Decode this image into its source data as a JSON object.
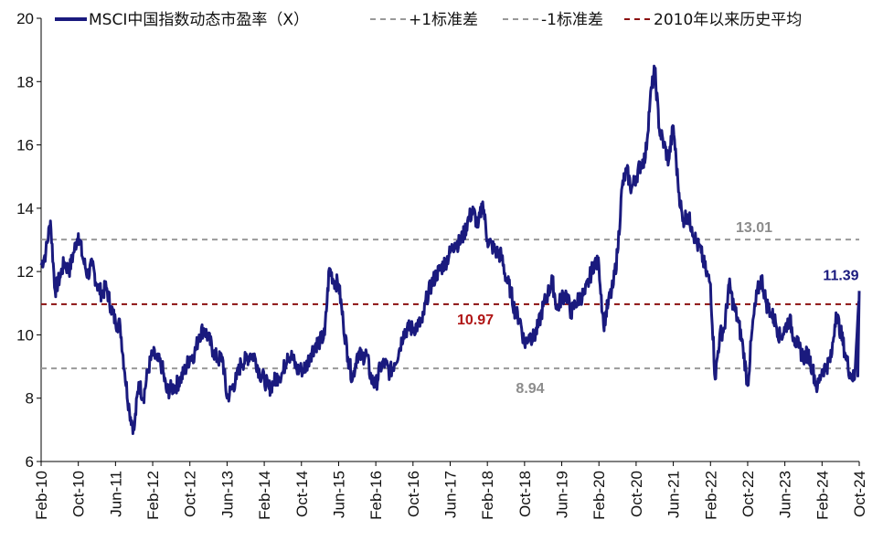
{
  "chart_data": {
    "type": "line",
    "title": "",
    "xlabel": "",
    "ylabel": "",
    "ylim": [
      6,
      20
    ],
    "y_ticks": [
      6,
      8,
      10,
      12,
      14,
      16,
      18,
      20
    ],
    "x_tick_labels": [
      "Feb-10",
      "Oct-10",
      "Jun-11",
      "Feb-12",
      "Oct-12",
      "Jun-13",
      "Feb-14",
      "Oct-14",
      "Jun-15",
      "Feb-16",
      "Oct-16",
      "Jun-17",
      "Feb-18",
      "Oct-18",
      "Jun-19",
      "Feb-20",
      "Oct-20",
      "Jun-21",
      "Feb-22",
      "Oct-22",
      "Jun-23",
      "Feb-24",
      "Oct-24"
    ],
    "legend_position": "top",
    "grid": false,
    "series": [
      {
        "name": "MSCI中国指数动态市盈率（X）",
        "color": "#1a1a7e",
        "points": [
          [
            "2010-02",
            12.2
          ],
          [
            "2010-03",
            12.6
          ],
          [
            "2010-04",
            13.6
          ],
          [
            "2010-05",
            11.4
          ],
          [
            "2010-06",
            11.8
          ],
          [
            "2010-07",
            12.3
          ],
          [
            "2010-08",
            12.0
          ],
          [
            "2010-09",
            12.6
          ],
          [
            "2010-10",
            13.2
          ],
          [
            "2010-11",
            12.4
          ],
          [
            "2010-12",
            11.9
          ],
          [
            "2011-01",
            12.2
          ],
          [
            "2011-02",
            11.6
          ],
          [
            "2011-03",
            11.3
          ],
          [
            "2011-04",
            11.5
          ],
          [
            "2011-05",
            10.9
          ],
          [
            "2011-06",
            10.4
          ],
          [
            "2011-07",
            10.3
          ],
          [
            "2011-08",
            8.8
          ],
          [
            "2011-09",
            7.6
          ],
          [
            "2011-10",
            7.0
          ],
          [
            "2011-11",
            8.5
          ],
          [
            "2011-12",
            8.0
          ],
          [
            "2012-01",
            8.9
          ],
          [
            "2012-02",
            9.4
          ],
          [
            "2012-03",
            9.2
          ],
          [
            "2012-04",
            9.0
          ],
          [
            "2012-05",
            8.2
          ],
          [
            "2012-06",
            8.3
          ],
          [
            "2012-07",
            8.4
          ],
          [
            "2012-08",
            8.6
          ],
          [
            "2012-09",
            8.9
          ],
          [
            "2012-10",
            9.3
          ],
          [
            "2012-11",
            9.4
          ],
          [
            "2012-12",
            10.0
          ],
          [
            "2013-01",
            10.2
          ],
          [
            "2013-02",
            9.9
          ],
          [
            "2013-03",
            9.5
          ],
          [
            "2013-04",
            9.2
          ],
          [
            "2013-05",
            9.3
          ],
          [
            "2013-06",
            8.0
          ],
          [
            "2013-07",
            8.3
          ],
          [
            "2013-08",
            8.6
          ],
          [
            "2013-09",
            9.1
          ],
          [
            "2013-10",
            9.2
          ],
          [
            "2013-11",
            9.4
          ],
          [
            "2013-12",
            9.3
          ],
          [
            "2014-01",
            8.8
          ],
          [
            "2014-02",
            8.6
          ],
          [
            "2014-03",
            8.3
          ],
          [
            "2014-04",
            8.5
          ],
          [
            "2014-05",
            8.7
          ],
          [
            "2014-06",
            8.8
          ],
          [
            "2014-07",
            9.4
          ],
          [
            "2014-08",
            9.3
          ],
          [
            "2014-09",
            8.9
          ],
          [
            "2014-10",
            8.9
          ],
          [
            "2014-11",
            9.0
          ],
          [
            "2014-12",
            9.4
          ],
          [
            "2015-01",
            9.7
          ],
          [
            "2015-02",
            9.8
          ],
          [
            "2015-03",
            10.0
          ],
          [
            "2015-04",
            12.1
          ],
          [
            "2015-05",
            11.7
          ],
          [
            "2015-06",
            11.6
          ],
          [
            "2015-07",
            10.4
          ],
          [
            "2015-08",
            9.3
          ],
          [
            "2015-09",
            8.6
          ],
          [
            "2015-10",
            9.4
          ],
          [
            "2015-11",
            9.3
          ],
          [
            "2015-12",
            9.4
          ],
          [
            "2016-01",
            8.6
          ],
          [
            "2016-02",
            8.4
          ],
          [
            "2016-03",
            9.0
          ],
          [
            "2016-04",
            9.1
          ],
          [
            "2016-05",
            8.8
          ],
          [
            "2016-06",
            9.1
          ],
          [
            "2016-07",
            9.5
          ],
          [
            "2016-08",
            10.1
          ],
          [
            "2016-09",
            10.2
          ],
          [
            "2016-10",
            10.2
          ],
          [
            "2016-11",
            10.3
          ],
          [
            "2016-12",
            10.4
          ],
          [
            "2017-01",
            11.2
          ],
          [
            "2017-02",
            11.6
          ],
          [
            "2017-03",
            11.9
          ],
          [
            "2017-04",
            12.1
          ],
          [
            "2017-05",
            12.3
          ],
          [
            "2017-06",
            12.6
          ],
          [
            "2017-07",
            12.9
          ],
          [
            "2017-08",
            12.9
          ],
          [
            "2017-09",
            13.2
          ],
          [
            "2017-10",
            13.7
          ],
          [
            "2017-11",
            13.9
          ],
          [
            "2017-12",
            13.4
          ],
          [
            "2018-01",
            14.2
          ],
          [
            "2018-02",
            13.0
          ],
          [
            "2018-03",
            12.8
          ],
          [
            "2018-04",
            12.6
          ],
          [
            "2018-05",
            12.5
          ],
          [
            "2018-06",
            11.8
          ],
          [
            "2018-07",
            11.4
          ],
          [
            "2018-08",
            10.7
          ],
          [
            "2018-09",
            10.5
          ],
          [
            "2018-10",
            9.7
          ],
          [
            "2018-11",
            10.0
          ],
          [
            "2018-12",
            9.9
          ],
          [
            "2019-01",
            10.3
          ],
          [
            "2019-02",
            10.9
          ],
          [
            "2019-03",
            11.3
          ],
          [
            "2019-04",
            11.7
          ],
          [
            "2019-05",
            10.8
          ],
          [
            "2019-06",
            11.2
          ],
          [
            "2019-07",
            11.3
          ],
          [
            "2019-08",
            10.7
          ],
          [
            "2019-09",
            11.0
          ],
          [
            "2019-10",
            11.2
          ],
          [
            "2019-11",
            11.3
          ],
          [
            "2019-12",
            11.8
          ],
          [
            "2020-01",
            12.3
          ],
          [
            "2020-02",
            12.2
          ],
          [
            "2020-03",
            10.3
          ],
          [
            "2020-04",
            11.0
          ],
          [
            "2020-05",
            11.5
          ],
          [
            "2020-06",
            12.6
          ],
          [
            "2020-07",
            14.7
          ],
          [
            "2020-08",
            15.2
          ],
          [
            "2020-09",
            14.6
          ],
          [
            "2020-10",
            15.0
          ],
          [
            "2020-11",
            15.4
          ],
          [
            "2020-12",
            15.6
          ],
          [
            "2021-01",
            17.4
          ],
          [
            "2021-02",
            18.4
          ],
          [
            "2021-03",
            16.5
          ],
          [
            "2021-04",
            16.0
          ],
          [
            "2021-05",
            15.5
          ],
          [
            "2021-06",
            16.6
          ],
          [
            "2021-07",
            14.8
          ],
          [
            "2021-08",
            13.6
          ],
          [
            "2021-09",
            13.8
          ],
          [
            "2021-10",
            13.4
          ],
          [
            "2021-11",
            12.9
          ],
          [
            "2021-12",
            12.6
          ],
          [
            "2022-01",
            12.0
          ],
          [
            "2022-02",
            11.6
          ],
          [
            "2022-03",
            8.6
          ],
          [
            "2022-04",
            10.0
          ],
          [
            "2022-05",
            10.2
          ],
          [
            "2022-06",
            11.6
          ],
          [
            "2022-07",
            10.9
          ],
          [
            "2022-08",
            10.4
          ],
          [
            "2022-09",
            9.6
          ],
          [
            "2022-10",
            8.4
          ],
          [
            "2022-11",
            10.2
          ],
          [
            "2022-12",
            11.3
          ],
          [
            "2023-01",
            11.8
          ],
          [
            "2023-02",
            11.0
          ],
          [
            "2023-03",
            10.7
          ],
          [
            "2023-04",
            10.4
          ],
          [
            "2023-05",
            9.9
          ],
          [
            "2023-06",
            10.2
          ],
          [
            "2023-07",
            10.5
          ],
          [
            "2023-08",
            9.9
          ],
          [
            "2023-09",
            9.6
          ],
          [
            "2023-10",
            9.3
          ],
          [
            "2023-11",
            9.4
          ],
          [
            "2023-12",
            8.9
          ],
          [
            "2024-01",
            8.3
          ],
          [
            "2024-02",
            8.9
          ],
          [
            "2024-03",
            9.0
          ],
          [
            "2024-04",
            9.3
          ],
          [
            "2024-05",
            10.7
          ],
          [
            "2024-06",
            10.1
          ],
          [
            "2024-07",
            9.4
          ],
          [
            "2024-08",
            8.8
          ],
          [
            "2024-09",
            8.6
          ],
          [
            "2024-10",
            11.39
          ]
        ]
      },
      {
        "name": "+1标准差",
        "color": "#999999",
        "dash": "dashed",
        "value": 13.01
      },
      {
        "name": "-1标准差",
        "color": "#999999",
        "dash": "dashed",
        "value": 8.94
      },
      {
        "name": "2010年以来历史平均",
        "color": "#8b1010",
        "dash": "dashed",
        "value": 10.97
      }
    ],
    "annotations": [
      {
        "text": "13.01",
        "color": "#8c8c8c"
      },
      {
        "text": "10.97",
        "color": "#b01515"
      },
      {
        "text": "8.94",
        "color": "#8c8c8c"
      },
      {
        "text": "11.39",
        "color": "#1a1a7e"
      }
    ]
  }
}
